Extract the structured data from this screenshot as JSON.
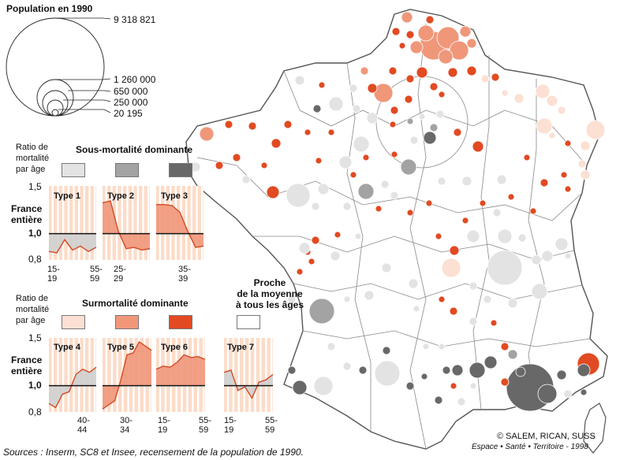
{
  "legend": {
    "population_title": "Population en 1990",
    "population_values": [
      "9 318 821",
      "1 260 000",
      "650 000",
      "250 000",
      "20 195"
    ],
    "ratio_label_1": "Ratio de",
    "ratio_label_2": "mortalité",
    "ratio_label_3": "par âge",
    "sous_title": "Sous-mortalité dominante",
    "sur_title": "Surmortalité dominante",
    "proche_line1": "Proche",
    "proche_line2": "de la moyenne",
    "proche_line3": "à tous les âges",
    "france_entiere_1": "France",
    "france_entiere_2": "entière",
    "y_ticks": [
      "1,5",
      "1,0",
      "0,8"
    ],
    "colors": {
      "sous_light": "#e3e3e3",
      "sous_mid": "#a3a3a3",
      "sous_dark": "#686868",
      "sur_light": "#fbe0d3",
      "sur_mid": "#f0977a",
      "sur_dark": "#e24a22",
      "proche": "#ffffff",
      "panel_bg": "#fcdcc8",
      "panel_stripe": "#ffffff",
      "line": "#d24a26"
    }
  },
  "types": [
    {
      "label": "Type 1",
      "x_ticks": [
        "15-",
        "19",
        "55-",
        "59"
      ],
      "values": [
        0.86,
        0.85,
        0.95,
        0.87,
        0.9,
        0.86,
        0.89
      ]
    },
    {
      "label": "Type 2",
      "x_ticks": [
        "25-",
        "29"
      ],
      "values": [
        1.3,
        1.32,
        1.02,
        0.88,
        0.89,
        0.87,
        0.88
      ]
    },
    {
      "label": "Type 3",
      "x_ticks": [
        "35-",
        "39"
      ],
      "values": [
        1.28,
        1.28,
        1.27,
        1.2,
        1.02,
        0.89,
        0.9
      ]
    },
    {
      "label": "Type 4",
      "x_ticks": [
        "40-",
        "44"
      ],
      "values": [
        0.86,
        0.83,
        0.93,
        0.95,
        1.1,
        1.15,
        1.12,
        1.17
      ]
    },
    {
      "label": "Type 5",
      "x_ticks": [
        "30-",
        "34"
      ],
      "values": [
        0.82,
        0.85,
        0.88,
        1.05,
        1.3,
        1.32,
        1.45,
        1.4,
        1.35
      ]
    },
    {
      "label": "Type 6",
      "x_ticks": [
        "15-",
        "19",
        "55-",
        "59"
      ],
      "values": [
        1.15,
        1.18,
        1.17,
        1.22,
        1.3,
        1.27,
        1.28,
        1.25
      ]
    },
    {
      "label": "Type 7",
      "x_ticks": [
        "15-",
        "19",
        "55-",
        "59"
      ],
      "values": [
        1.12,
        1.14,
        0.96,
        0.99,
        0.9,
        1.03,
        1.05,
        1.1
      ]
    }
  ],
  "footer": {
    "sources": "Sources : Inserm, SC8 et Insee, recensement de la population de 1990.",
    "copyright": "© SALEM, RICAN, SUSS",
    "publication": "Espace • Santé • Territoire - 1998"
  },
  "map": {
    "circles": [
      {
        "x": 550,
        "y": 58,
        "r": 18,
        "c": "sur_mid"
      },
      {
        "x": 568,
        "y": 48,
        "r": 14,
        "c": "sur_mid"
      },
      {
        "x": 540,
        "y": 42,
        "r": 10,
        "c": "sur_mid"
      },
      {
        "x": 582,
        "y": 64,
        "r": 12,
        "c": "sur_mid"
      },
      {
        "x": 565,
        "y": 72,
        "r": 9,
        "c": "sur_mid"
      },
      {
        "x": 528,
        "y": 60,
        "r": 8,
        "c": "sur_mid"
      },
      {
        "x": 516,
        "y": 22,
        "r": 7,
        "c": "sur_mid"
      },
      {
        "x": 502,
        "y": 40,
        "r": 5,
        "c": "sur_dark"
      },
      {
        "x": 590,
        "y": 40,
        "r": 7,
        "c": "sur_mid"
      },
      {
        "x": 598,
        "y": 55,
        "r": 6,
        "c": "sur_mid"
      },
      {
        "x": 545,
        "y": 25,
        "r": 5,
        "c": "sur_dark"
      },
      {
        "x": 520,
        "y": 44,
        "r": 5,
        "c": "sur_dark"
      },
      {
        "x": 510,
        "y": 58,
        "r": 4,
        "c": "sur_dark"
      },
      {
        "x": 574,
        "y": 92,
        "r": 6,
        "c": "sur_dark"
      },
      {
        "x": 486,
        "y": 118,
        "r": 12,
        "c": "sur_mid"
      },
      {
        "x": 498,
        "y": 90,
        "r": 5,
        "c": "sur_dark"
      },
      {
        "x": 520,
        "y": 100,
        "r": 5,
        "c": "sur_dark"
      },
      {
        "x": 535,
        "y": 92,
        "r": 7,
        "c": "sur_dark"
      },
      {
        "x": 472,
        "y": 112,
        "r": 6,
        "c": "sur_dark"
      },
      {
        "x": 462,
        "y": 90,
        "r": 5,
        "c": "sur_mid"
      },
      {
        "x": 550,
        "y": 110,
        "r": 5,
        "c": "sur_dark"
      },
      {
        "x": 500,
        "y": 140,
        "r": 5,
        "c": "sur_dark"
      },
      {
        "x": 518,
        "y": 126,
        "r": 5,
        "c": "sur_dark"
      },
      {
        "x": 560,
        "y": 120,
        "r": 4,
        "c": "sur_dark"
      },
      {
        "x": 598,
        "y": 90,
        "r": 6,
        "c": "sur_dark"
      },
      {
        "x": 615,
        "y": 100,
        "r": 5,
        "c": "sur_light"
      },
      {
        "x": 628,
        "y": 98,
        "r": 5,
        "c": "sur_dark"
      },
      {
        "x": 640,
        "y": 118,
        "r": 4,
        "c": "sur_light"
      },
      {
        "x": 658,
        "y": 125,
        "r": 6,
        "c": "sur_light"
      },
      {
        "x": 688,
        "y": 116,
        "r": 9,
        "c": "sur_light"
      },
      {
        "x": 700,
        "y": 128,
        "r": 7,
        "c": "sur_light"
      },
      {
        "x": 690,
        "y": 160,
        "r": 10,
        "c": "sur_light"
      },
      {
        "x": 712,
        "y": 140,
        "r": 5,
        "c": "sur_light"
      },
      {
        "x": 700,
        "y": 172,
        "r": 4,
        "c": "sur_light"
      },
      {
        "x": 742,
        "y": 185,
        "r": 6,
        "c": "sur_light"
      },
      {
        "x": 755,
        "y": 165,
        "r": 12,
        "c": "sur_light"
      },
      {
        "x": 738,
        "y": 208,
        "r": 5,
        "c": "sur_light"
      },
      {
        "x": 742,
        "y": 222,
        "r": 6,
        "c": "sur_light"
      },
      {
        "x": 720,
        "y": 182,
        "r": 4,
        "c": "sur_dark"
      },
      {
        "x": 715,
        "y": 222,
        "r": 4,
        "c": "sur_dark"
      },
      {
        "x": 720,
        "y": 240,
        "r": 4,
        "c": "sur_dark"
      },
      {
        "x": 690,
        "y": 232,
        "r": 5,
        "c": "sur_dark"
      },
      {
        "x": 668,
        "y": 200,
        "r": 4,
        "c": "sur_dark"
      },
      {
        "x": 676,
        "y": 268,
        "r": 4,
        "c": "sur_dark"
      },
      {
        "x": 606,
        "y": 186,
        "r": 7,
        "c": "sur_dark"
      },
      {
        "x": 580,
        "y": 168,
        "r": 5,
        "c": "sur_dark"
      },
      {
        "x": 545,
        "y": 175,
        "r": 8,
        "c": "sous_dark"
      },
      {
        "x": 550,
        "y": 162,
        "r": 5,
        "c": "sous_mid"
      },
      {
        "x": 525,
        "y": 178,
        "r": 5,
        "c": "sous_light"
      },
      {
        "x": 558,
        "y": 145,
        "r": 5,
        "c": "sous_light"
      },
      {
        "x": 535,
        "y": 148,
        "r": 4,
        "c": "sous_light"
      },
      {
        "x": 520,
        "y": 154,
        "r": 4,
        "c": "sous_mid"
      },
      {
        "x": 498,
        "y": 158,
        "r": 4,
        "c": "sur_dark"
      },
      {
        "x": 472,
        "y": 150,
        "r": 7,
        "c": "sous_light"
      },
      {
        "x": 452,
        "y": 138,
        "r": 5,
        "c": "sous_light"
      },
      {
        "x": 458,
        "y": 183,
        "r": 10,
        "c": "sous_light"
      },
      {
        "x": 438,
        "y": 206,
        "r": 8,
        "c": "sous_light"
      },
      {
        "x": 518,
        "y": 212,
        "r": 10,
        "c": "sous_mid"
      },
      {
        "x": 426,
        "y": 132,
        "r": 9,
        "c": "sous_light"
      },
      {
        "x": 402,
        "y": 138,
        "r": 5,
        "c": "sous_dark"
      },
      {
        "x": 380,
        "y": 102,
        "r": 6,
        "c": "sous_light"
      },
      {
        "x": 448,
        "y": 112,
        "r": 5,
        "c": "sous_light"
      },
      {
        "x": 408,
        "y": 108,
        "r": 4,
        "c": "sur_dark"
      },
      {
        "x": 378,
        "y": 248,
        "r": 15,
        "c": "sous_light"
      },
      {
        "x": 410,
        "y": 240,
        "r": 7,
        "c": "sous_light"
      },
      {
        "x": 464,
        "y": 243,
        "r": 10,
        "c": "sous_mid"
      },
      {
        "x": 488,
        "y": 234,
        "r": 5,
        "c": "sous_light"
      },
      {
        "x": 500,
        "y": 248,
        "r": 5,
        "c": "sous_light"
      },
      {
        "x": 440,
        "y": 262,
        "r": 5,
        "c": "sous_light"
      },
      {
        "x": 400,
        "y": 262,
        "r": 5,
        "c": "sous_light"
      },
      {
        "x": 560,
        "y": 230,
        "r": 5,
        "c": "sous_light"
      },
      {
        "x": 592,
        "y": 230,
        "r": 6,
        "c": "sous_light"
      },
      {
        "x": 636,
        "y": 228,
        "r": 6,
        "c": "sous_light"
      },
      {
        "x": 630,
        "y": 270,
        "r": 5,
        "c": "sous_light"
      },
      {
        "x": 640,
        "y": 300,
        "r": 9,
        "c": "sous_light"
      },
      {
        "x": 600,
        "y": 300,
        "r": 8,
        "c": "sous_light"
      },
      {
        "x": 640,
        "y": 340,
        "r": 22,
        "c": "sous_light"
      },
      {
        "x": 680,
        "y": 330,
        "r": 6,
        "c": "sous_light"
      },
      {
        "x": 662,
        "y": 302,
        "r": 5,
        "c": "sous_light"
      },
      {
        "x": 712,
        "y": 310,
        "r": 8,
        "c": "sous_light"
      },
      {
        "x": 694,
        "y": 325,
        "r": 7,
        "c": "sous_light"
      },
      {
        "x": 720,
        "y": 325,
        "r": 4,
        "c": "sous_light"
      },
      {
        "x": 684,
        "y": 370,
        "r": 10,
        "c": "sous_light"
      },
      {
        "x": 650,
        "y": 385,
        "r": 6,
        "c": "sous_light"
      },
      {
        "x": 618,
        "y": 380,
        "r": 5,
        "c": "sous_light"
      },
      {
        "x": 600,
        "y": 363,
        "r": 5,
        "c": "sous_light"
      },
      {
        "x": 572,
        "y": 340,
        "r": 12,
        "c": "sur_light"
      },
      {
        "x": 556,
        "y": 300,
        "r": 4,
        "c": "sur_dark"
      },
      {
        "x": 576,
        "y": 318,
        "r": 6,
        "c": "sur_dark"
      },
      {
        "x": 590,
        "y": 280,
        "r": 4,
        "c": "sur_dark"
      },
      {
        "x": 524,
        "y": 360,
        "r": 6,
        "c": "sous_light"
      },
      {
        "x": 490,
        "y": 340,
        "r": 6,
        "c": "sous_light"
      },
      {
        "x": 468,
        "y": 375,
        "r": 6,
        "c": "sous_light"
      },
      {
        "x": 440,
        "y": 380,
        "r": 4,
        "c": "sous_light"
      },
      {
        "x": 408,
        "y": 395,
        "r": 16,
        "c": "sous_mid"
      },
      {
        "x": 370,
        "y": 380,
        "r": 5,
        "c": "sous_light"
      },
      {
        "x": 425,
        "y": 325,
        "r": 6,
        "c": "sous_light"
      },
      {
        "x": 454,
        "y": 300,
        "r": 4,
        "c": "sous_light"
      },
      {
        "x": 390,
        "y": 320,
        "r": 4,
        "c": "sur_dark"
      },
      {
        "x": 400,
        "y": 305,
        "r": 5,
        "c": "sur_dark"
      },
      {
        "x": 380,
        "y": 345,
        "r": 4,
        "c": "sur_dark"
      },
      {
        "x": 395,
        "y": 332,
        "r": 4,
        "c": "sur_dark"
      },
      {
        "x": 428,
        "y": 298,
        "r": 4,
        "c": "sur_dark"
      },
      {
        "x": 386,
        "y": 315,
        "r": 7,
        "c": "sous_light"
      },
      {
        "x": 528,
        "y": 392,
        "r": 4,
        "c": "sous_light"
      },
      {
        "x": 560,
        "y": 380,
        "r": 4,
        "c": "sur_dark"
      },
      {
        "x": 575,
        "y": 395,
        "r": 5,
        "c": "sur_dark"
      },
      {
        "x": 600,
        "y": 408,
        "r": 5,
        "c": "sous_light"
      },
      {
        "x": 626,
        "y": 410,
        "r": 4,
        "c": "sur_dark"
      },
      {
        "x": 640,
        "y": 440,
        "r": 5,
        "c": "sur_dark"
      },
      {
        "x": 650,
        "y": 450,
        "r": 6,
        "c": "sous_mid"
      },
      {
        "x": 622,
        "y": 460,
        "r": 8,
        "c": "sous_dark"
      },
      {
        "x": 605,
        "y": 470,
        "r": 10,
        "c": "sous_dark"
      },
      {
        "x": 580,
        "y": 470,
        "r": 7,
        "c": "sous_dark"
      },
      {
        "x": 566,
        "y": 470,
        "r": 5,
        "c": "sous_dark"
      },
      {
        "x": 672,
        "y": 492,
        "r": 30,
        "c": "sous_dark"
      },
      {
        "x": 694,
        "y": 500,
        "r": 12,
        "c": "sous_dark"
      },
      {
        "x": 660,
        "y": 472,
        "r": 6,
        "c": "sous_dark"
      },
      {
        "x": 712,
        "y": 476,
        "r": 6,
        "c": "sous_dark"
      },
      {
        "x": 746,
        "y": 462,
        "r": 14,
        "c": "sur_dark"
      },
      {
        "x": 740,
        "y": 470,
        "r": 8,
        "c": "sous_dark"
      },
      {
        "x": 640,
        "y": 485,
        "r": 5,
        "c": "sur_dark"
      },
      {
        "x": 720,
        "y": 500,
        "r": 5,
        "c": "sous_light"
      },
      {
        "x": 491,
        "y": 474,
        "r": 16,
        "c": "sous_light"
      },
      {
        "x": 520,
        "y": 490,
        "r": 5,
        "c": "sous_dark"
      },
      {
        "x": 538,
        "y": 478,
        "r": 4,
        "c": "sous_dark"
      },
      {
        "x": 556,
        "y": 508,
        "r": 5,
        "c": "sous_dark"
      },
      {
        "x": 575,
        "y": 490,
        "r": 4,
        "c": "sur_dark"
      },
      {
        "x": 585,
        "y": 510,
        "r": 5,
        "c": "sous_light"
      },
      {
        "x": 490,
        "y": 445,
        "r": 5,
        "c": "sous_dark"
      },
      {
        "x": 460,
        "y": 470,
        "r": 5,
        "c": "sous_dark"
      },
      {
        "x": 440,
        "y": 465,
        "r": 5,
        "c": "sous_light"
      },
      {
        "x": 410,
        "y": 490,
        "r": 12,
        "c": "sous_light"
      },
      {
        "x": 380,
        "y": 492,
        "r": 9,
        "c": "sous_dark"
      },
      {
        "x": 370,
        "y": 470,
        "r": 5,
        "c": "sous_dark"
      },
      {
        "x": 420,
        "y": 440,
        "r": 5,
        "c": "sous_light"
      },
      {
        "x": 540,
        "y": 440,
        "r": 4,
        "c": "sous_light"
      },
      {
        "x": 560,
        "y": 440,
        "r": 4,
        "c": "sous_light"
      },
      {
        "x": 600,
        "y": 490,
        "r": 4,
        "c": "sous_light"
      },
      {
        "x": 740,
        "y": 498,
        "r": 4,
        "c": "sous_dark"
      },
      {
        "x": 752,
        "y": 555,
        "r": 4,
        "c": "sous_light"
      },
      {
        "x": 320,
        "y": 160,
        "r": 5,
        "c": "sur_dark"
      },
      {
        "x": 290,
        "y": 158,
        "r": 5,
        "c": "sur_dark"
      },
      {
        "x": 262,
        "y": 170,
        "r": 9,
        "c": "sur_mid"
      },
      {
        "x": 248,
        "y": 212,
        "r": 6,
        "c": "sous_light"
      },
      {
        "x": 278,
        "y": 210,
        "r": 5,
        "c": "sur_dark"
      },
      {
        "x": 300,
        "y": 200,
        "r": 5,
        "c": "sur_dark"
      },
      {
        "x": 346,
        "y": 244,
        "r": 8,
        "c": "sur_dark"
      },
      {
        "x": 312,
        "y": 228,
        "r": 5,
        "c": "sous_light"
      },
      {
        "x": 365,
        "y": 158,
        "r": 5,
        "c": "sur_dark"
      },
      {
        "x": 350,
        "y": 182,
        "r": 6,
        "c": "sur_dark"
      },
      {
        "x": 390,
        "y": 168,
        "r": 4,
        "c": "sur_dark"
      },
      {
        "x": 420,
        "y": 168,
        "r": 4,
        "c": "sur_dark"
      },
      {
        "x": 335,
        "y": 210,
        "r": 4,
        "c": "sur_dark"
      },
      {
        "x": 404,
        "y": 204,
        "r": 4,
        "c": "sur_dark"
      },
      {
        "x": 448,
        "y": 222,
        "r": 4,
        "c": "sur_dark"
      },
      {
        "x": 480,
        "y": 265,
        "r": 4,
        "c": "sur_dark"
      },
      {
        "x": 520,
        "y": 270,
        "r": 4,
        "c": "sur_dark"
      },
      {
        "x": 544,
        "y": 258,
        "r": 4,
        "c": "sur_dark"
      },
      {
        "x": 612,
        "y": 258,
        "r": 4,
        "c": "sur_dark"
      },
      {
        "x": 648,
        "y": 250,
        "r": 4,
        "c": "sur_dark"
      },
      {
        "x": 464,
        "y": 200,
        "r": 4,
        "c": "sur_dark"
      },
      {
        "x": 500,
        "y": 196,
        "r": 4,
        "c": "sur_dark"
      }
    ]
  }
}
